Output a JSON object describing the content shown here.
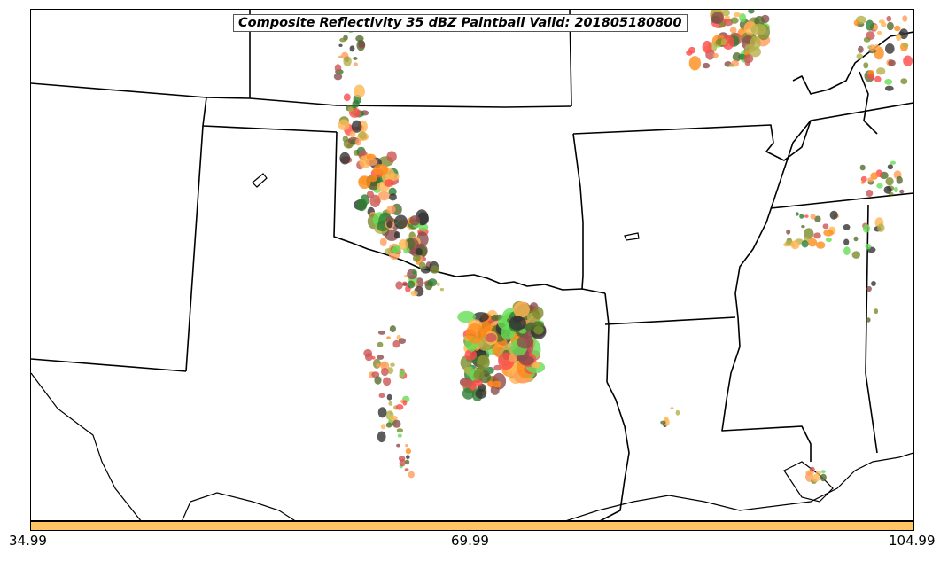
{
  "map": {
    "title": "Composite Reflectivity 35 dBZ Paintball Valid: 201805180800"
  },
  "colorbar": {
    "color": "#ffc565",
    "ticks": [
      "34.99",
      "69.99",
      "104.99"
    ]
  },
  "palette": [
    "#2e7d32",
    "#8b4c4c",
    "#333333",
    "#ff4a4a",
    "#ff8c1a",
    "#ff9c5a",
    "#b5b04a",
    "#66dd55",
    "#7a8c2e",
    "#cc5555",
    "#ffb655",
    "#556b2f"
  ]
}
